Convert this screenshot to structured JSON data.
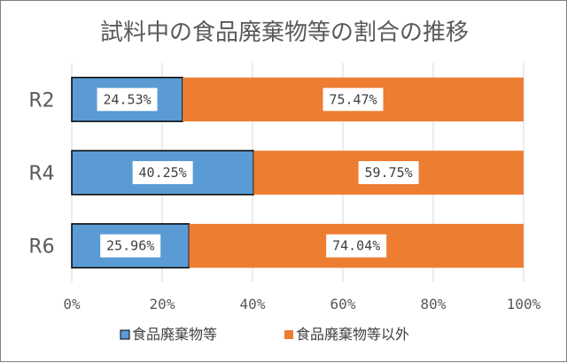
{
  "chart_data": {
    "type": "bar",
    "orientation": "horizontal",
    "stacked": "percent",
    "title": "試料中の食品廃棄物等の割合の推移",
    "categories": [
      "R2",
      "R4",
      "R6"
    ],
    "series": [
      {
        "name": "食品廃棄物等",
        "values": [
          24.53,
          40.25,
          25.96
        ],
        "labels": [
          "24.53%",
          "40.25%",
          "25.96%"
        ],
        "color": "#5b9bd5"
      },
      {
        "name": "食品廃棄物等以外",
        "values": [
          75.47,
          59.75,
          74.04
        ],
        "labels": [
          "75.47%",
          "59.75%",
          "74.04%"
        ],
        "color": "#ed7d31"
      }
    ],
    "xlim": [
      0,
      100
    ],
    "x_ticks": [
      "0%",
      "20%",
      "40%",
      "60%",
      "80%",
      "100%"
    ],
    "grid": true,
    "legend_position": "bottom"
  }
}
